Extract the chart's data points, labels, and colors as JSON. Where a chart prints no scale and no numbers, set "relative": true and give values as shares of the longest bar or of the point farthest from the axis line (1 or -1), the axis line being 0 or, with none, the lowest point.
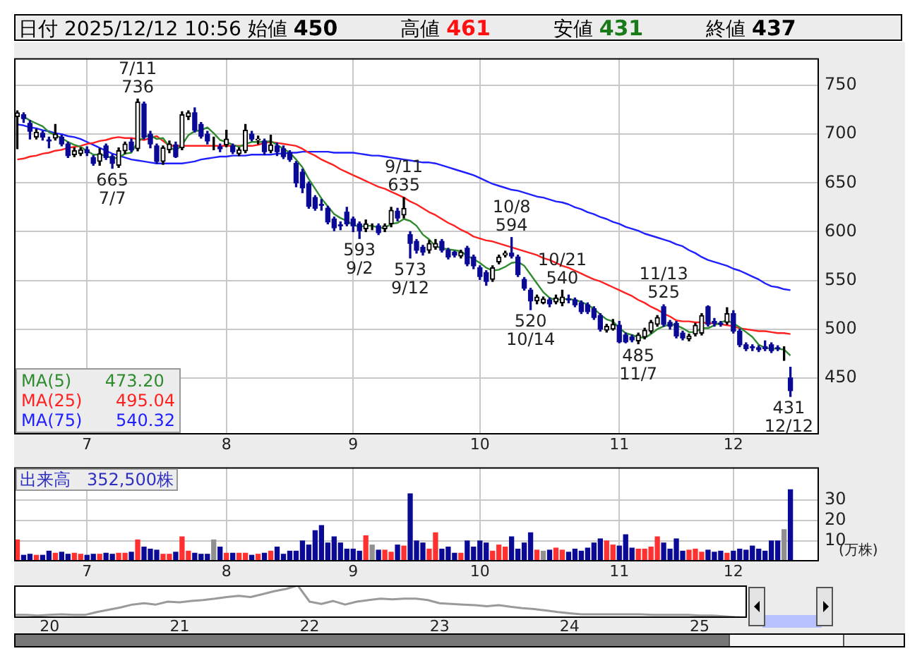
{
  "chart_data": [
    {
      "type": "candlestick",
      "title": "日付 2025/12/12 10:56 始値 450 高値 461 安値 431 終値 437",
      "categories": [
        null,
        null,
        null,
        null,
        null,
        null,
        null,
        null,
        null,
        null,
        null,
        "7",
        null,
        null,
        null,
        null,
        null,
        null,
        null,
        null,
        null,
        null,
        null,
        null,
        null,
        null,
        null,
        null,
        null,
        null,
        null,
        null,
        null,
        "8",
        null,
        null,
        null,
        null,
        null,
        null,
        null,
        null,
        null,
        null,
        null,
        null,
        null,
        null,
        null,
        null,
        null,
        null,
        null,
        "9",
        null,
        null,
        null,
        null,
        null,
        null,
        null,
        null,
        null,
        null,
        null,
        null,
        null,
        null,
        null,
        null,
        null,
        null,
        null,
        "10",
        null,
        null,
        null,
        null,
        null,
        null,
        null,
        null,
        null,
        null,
        null,
        null,
        null,
        null,
        null,
        null,
        null,
        null,
        null,
        null,
        null,
        "11",
        null,
        null,
        null,
        null,
        null,
        null,
        null,
        null,
        null,
        null,
        null,
        null,
        null,
        null,
        null,
        null,
        null,
        "12",
        null,
        null,
        null,
        null,
        null,
        null,
        null,
        null,
        null,
        null,
        null,
        null,
        null
      ],
      "ohlc": [
        [
          718,
          724,
          685,
          722
        ],
        [
          720,
          722,
          712,
          716
        ],
        [
          711,
          714,
          695,
          703
        ],
        [
          697,
          705,
          695,
          702
        ],
        [
          701,
          703,
          694,
          697
        ],
        [
          694,
          697,
          686,
          693
        ],
        [
          696,
          710,
          694,
          700
        ],
        [
          697,
          699,
          688,
          690
        ],
        [
          690,
          692,
          676,
          678
        ],
        [
          679,
          686,
          677,
          683
        ],
        [
          680,
          686,
          678,
          684
        ],
        [
          684,
          687,
          678,
          681
        ],
        [
          676,
          678,
          668,
          670
        ],
        [
          672,
          685,
          668,
          680
        ],
        [
          688,
          690,
          674,
          676
        ],
        [
          677,
          679,
          665,
          670
        ],
        [
          668,
          686,
          666,
          683
        ],
        [
          683,
          692,
          680,
          690
        ],
        [
          692,
          695,
          682,
          684
        ],
        [
          685,
          736,
          683,
          733
        ],
        [
          731,
          733,
          695,
          697
        ],
        [
          700,
          703,
          686,
          690
        ],
        [
          688,
          690,
          670,
          672
        ],
        [
          672,
          688,
          669,
          686
        ],
        [
          684,
          693,
          681,
          690
        ],
        [
          689,
          692,
          676,
          677
        ],
        [
          686,
          723,
          684,
          720
        ],
        [
          718,
          724,
          715,
          722
        ],
        [
          722,
          727,
          702,
          704
        ],
        [
          710,
          712,
          696,
          698
        ],
        [
          700,
          703,
          690,
          693
        ],
        [
          688,
          697,
          684,
          688
        ],
        [
          687,
          690,
          682,
          685
        ],
        [
          689,
          704,
          687,
          695
        ],
        [
          688,
          690,
          680,
          682
        ],
        [
          680,
          686,
          678,
          684
        ],
        [
          683,
          710,
          681,
          704
        ],
        [
          700,
          703,
          693,
          695
        ],
        [
          694,
          698,
          690,
          695
        ],
        [
          693,
          695,
          679,
          682
        ],
        [
          683,
          699,
          681,
          689
        ],
        [
          688,
          691,
          678,
          682
        ],
        [
          685,
          688,
          675,
          677
        ],
        [
          681,
          683,
          672,
          674
        ],
        [
          670,
          672,
          646,
          650
        ],
        [
          661,
          664,
          640,
          645
        ],
        [
          649,
          651,
          624,
          626
        ],
        [
          635,
          637,
          622,
          624
        ],
        [
          628,
          633,
          622,
          627
        ],
        [
          624,
          626,
          608,
          610
        ],
        [
          613,
          615,
          601,
          604
        ],
        [
          607,
          610,
          602,
          606
        ],
        [
          620,
          625,
          606,
          608
        ],
        [
          613,
          615,
          600,
          606
        ],
        [
          608,
          610,
          593,
          601
        ],
        [
          603,
          612,
          600,
          608
        ],
        [
          606,
          608,
          602,
          606
        ],
        [
          606,
          608,
          597,
          599
        ],
        [
          603,
          608,
          600,
          606
        ],
        [
          608,
          625,
          605,
          622
        ],
        [
          621,
          624,
          611,
          614
        ],
        [
          617,
          635,
          614,
          624
        ],
        [
          597,
          600,
          573,
          588
        ],
        [
          590,
          592,
          578,
          581
        ],
        [
          584,
          586,
          576,
          579
        ],
        [
          581,
          591,
          578,
          588
        ],
        [
          584,
          592,
          582,
          588
        ],
        [
          590,
          592,
          579,
          581
        ],
        [
          581,
          583,
          572,
          574
        ],
        [
          579,
          580,
          574,
          576
        ],
        [
          575,
          581,
          573,
          579
        ],
        [
          583,
          585,
          565,
          567
        ],
        [
          574,
          576,
          562,
          565
        ],
        [
          563,
          565,
          551,
          554
        ],
        [
          558,
          560,
          545,
          549
        ],
        [
          551,
          565,
          549,
          563
        ],
        [
          569,
          576,
          567,
          574
        ],
        [
          576,
          580,
          574,
          578
        ],
        [
          578,
          594,
          573,
          575
        ],
        [
          574,
          576,
          554,
          556
        ],
        [
          551,
          553,
          540,
          542
        ],
        [
          540,
          542,
          520,
          529
        ],
        [
          529,
          535,
          526,
          533
        ],
        [
          527,
          533,
          526,
          531
        ],
        [
          530,
          532,
          523,
          526
        ],
        [
          528,
          535,
          526,
          532
        ],
        [
          527,
          540,
          524,
          533
        ],
        [
          531,
          535,
          527,
          530
        ],
        [
          530,
          532,
          523,
          525
        ],
        [
          527,
          529,
          516,
          518
        ],
        [
          525,
          527,
          516,
          518
        ],
        [
          521,
          523,
          510,
          512
        ],
        [
          514,
          516,
          498,
          500
        ],
        [
          499,
          505,
          497,
          503
        ],
        [
          500,
          510,
          499,
          505
        ],
        [
          504,
          508,
          486,
          487
        ],
        [
          494,
          496,
          486,
          487
        ],
        [
          492,
          494,
          487,
          489
        ],
        [
          488,
          496,
          485,
          494
        ],
        [
          492,
          501,
          490,
          499
        ],
        [
          498,
          509,
          496,
          507
        ],
        [
          505,
          514,
          503,
          512
        ],
        [
          523,
          525,
          503,
          505
        ],
        [
          507,
          509,
          500,
          503
        ],
        [
          506,
          508,
          491,
          493
        ],
        [
          496,
          498,
          489,
          491
        ],
        [
          490,
          495,
          488,
          493
        ],
        [
          495,
          506,
          493,
          504
        ],
        [
          496,
          516,
          494,
          514
        ],
        [
          523,
          524,
          503,
          505
        ],
        [
          508,
          511,
          503,
          506
        ],
        [
          506,
          508,
          503,
          505
        ],
        [
          507,
          522,
          505,
          516
        ],
        [
          516,
          519,
          496,
          498
        ],
        [
          498,
          500,
          482,
          484
        ],
        [
          484,
          486,
          478,
          480
        ],
        [
          482,
          484,
          478,
          481
        ],
        [
          481,
          483,
          477,
          479
        ],
        [
          482,
          488,
          478,
          480
        ],
        [
          484,
          486,
          476,
          478
        ],
        [
          481,
          483,
          478,
          480
        ],
        [
          480,
          482,
          468,
          480
        ],
        [
          450,
          461,
          431,
          437
        ],
        null,
        null,
        null,
        null
      ],
      "series": [
        {
          "name": "MA(5) 473.20",
          "type": "line",
          "color": "#2e8b2e",
          "values": [
            null,
            718,
            714,
            711,
            708,
            702,
            699,
            696,
            692,
            689,
            687,
            683,
            679,
            679,
            678,
            675,
            676,
            680,
            681,
            692,
            697,
            699,
            695,
            696,
            687,
            683,
            689,
            699,
            703,
            704,
            707,
            701,
            694,
            692,
            689,
            687,
            690,
            692,
            692,
            692,
            693,
            689,
            685,
            681,
            674,
            666,
            654,
            644,
            634,
            626,
            618,
            614,
            611,
            607,
            605,
            606,
            606,
            604,
            604,
            608,
            609,
            613,
            611,
            606,
            597,
            592,
            585,
            583,
            582,
            581,
            580,
            575,
            572,
            568,
            563,
            560,
            561,
            564,
            568,
            569,
            565,
            556,
            547,
            538,
            532,
            530,
            531,
            531,
            530,
            528,
            525,
            521,
            515,
            510,
            508,
            501,
            496,
            494,
            492,
            491,
            495,
            500,
            503,
            505,
            504,
            501,
            497,
            497,
            501,
            501,
            504,
            507,
            509,
            506,
            502,
            497,
            492,
            484,
            481,
            480,
            480,
            479,
            473,
            null,
            null,
            null,
            null
          ]
        },
        {
          "name": "MA(25) 495.04",
          "type": "line",
          "color": "#ff2020",
          "values": [
            674,
            675,
            677,
            678,
            680,
            681,
            683,
            684,
            686,
            687,
            688,
            690,
            691,
            693,
            694,
            696,
            697,
            696,
            696,
            695,
            694,
            696,
            698,
            693,
            688,
            688,
            688,
            688,
            688,
            688,
            688,
            688,
            688,
            688,
            688,
            688,
            688,
            688,
            689,
            691,
            692,
            691,
            690,
            689,
            688,
            685,
            681,
            678,
            674,
            671,
            668,
            664,
            661,
            658,
            655,
            652,
            649,
            646,
            644,
            641,
            638,
            635,
            631,
            628,
            624,
            620,
            617,
            613,
            609,
            606,
            602,
            599,
            595,
            593,
            591,
            590,
            588,
            586,
            584,
            582,
            580,
            578,
            576,
            573,
            571,
            568,
            565,
            563,
            560,
            557,
            554,
            551,
            549,
            546,
            543,
            540,
            537,
            534,
            530,
            527,
            523,
            520,
            516,
            513,
            509,
            508,
            508,
            507,
            507,
            506,
            506,
            505,
            504,
            503,
            501,
            500,
            499,
            498,
            498,
            497,
            496,
            496,
            495,
            null,
            null,
            null,
            null
          ]
        },
        {
          "name": "MA(75) 540.32",
          "type": "line",
          "color": "#2020ff",
          "values": [
            710,
            709,
            707,
            706,
            704,
            703,
            701,
            700,
            698,
            697,
            695,
            692,
            689,
            686,
            683,
            680,
            678,
            676,
            674,
            673,
            672,
            671,
            670,
            670,
            670,
            670,
            670,
            671,
            672,
            674,
            675,
            676,
            677,
            677,
            678,
            678,
            678,
            679,
            679,
            679,
            679,
            680,
            680,
            681,
            681,
            682,
            682,
            682,
            682,
            682,
            681,
            681,
            681,
            681,
            680,
            679,
            678,
            678,
            677,
            676,
            675,
            674,
            673,
            672,
            671,
            671,
            670,
            668,
            666,
            664,
            662,
            660,
            658,
            655,
            652,
            649,
            647,
            645,
            643,
            642,
            640,
            638,
            636,
            635,
            633,
            631,
            630,
            628,
            625,
            623,
            620,
            618,
            615,
            613,
            610,
            608,
            605,
            603,
            601,
            598,
            596,
            594,
            592,
            590,
            587,
            585,
            581,
            578,
            574,
            571,
            569,
            567,
            565,
            562,
            560,
            557,
            554,
            551,
            547,
            544,
            543,
            541,
            540,
            null,
            null,
            null,
            null
          ]
        }
      ],
      "annotations": [
        {
          "text": "7/11\n736",
          "y": 736
        },
        {
          "text": "665\n7/7",
          "y": 665
        },
        {
          "text": "9/11\n635",
          "y": 635
        },
        {
          "text": "593\n9/2",
          "y": 593
        },
        {
          "text": "573\n9/12",
          "y": 573
        },
        {
          "text": "10/8\n594",
          "y": 594
        },
        {
          "text": "520\n10/14",
          "y": 520
        },
        {
          "text": "10/21\n540",
          "y": 540
        },
        {
          "text": "11/13\n525",
          "y": 525
        },
        {
          "text": "485\n11/7",
          "y": 485
        },
        {
          "text": "431\n12/12",
          "y": 431
        }
      ],
      "ylim": [
        392,
        778
      ],
      "yticks": [
        450,
        500,
        550,
        600,
        650,
        700,
        750
      ],
      "grid": true,
      "legend": "bottom left"
    },
    {
      "type": "bar",
      "title": "出来高 352,500株",
      "ylabel": "(万株)",
      "categories": [
        null,
        null,
        null,
        null,
        null,
        null,
        null,
        null,
        null,
        null,
        null,
        "7",
        null,
        null,
        null,
        null,
        null,
        null,
        null,
        null,
        null,
        null,
        null,
        null,
        null,
        null,
        null,
        null,
        null,
        null,
        null,
        null,
        null,
        "8",
        null,
        null,
        null,
        null,
        null,
        null,
        null,
        null,
        null,
        null,
        null,
        null,
        null,
        null,
        null,
        null,
        null,
        null,
        null,
        "9",
        null,
        null,
        null,
        null,
        null,
        null,
        null,
        null,
        null,
        null,
        null,
        null,
        null,
        null,
        null,
        null,
        null,
        null,
        null,
        "10",
        null,
        null,
        null,
        null,
        null,
        null,
        null,
        null,
        null,
        null,
        null,
        null,
        null,
        null,
        null,
        null,
        null,
        null,
        null,
        null,
        null,
        "11",
        null,
        null,
        null,
        null,
        null,
        null,
        null,
        null,
        null,
        null,
        null,
        null,
        null,
        null,
        null,
        null,
        null,
        "12",
        null,
        null,
        null,
        null,
        null,
        null,
        null,
        null,
        null,
        null,
        null,
        null,
        null
      ],
      "values": [
        10.5,
        3,
        3.5,
        3,
        3,
        5,
        4,
        4.5,
        3.5,
        4,
        3.5,
        3,
        3.5,
        3.5,
        4,
        3.5,
        4,
        4,
        4.5,
        10.5,
        7,
        6,
        5.5,
        3.5,
        3.5,
        4.5,
        12,
        5,
        4,
        3.5,
        3.5,
        10.5,
        7,
        4,
        4,
        4,
        4,
        3,
        3.5,
        4,
        5,
        7,
        3.5,
        5,
        5,
        10,
        8,
        15,
        17.5,
        9,
        12,
        9,
        6,
        6,
        5,
        12.5,
        8,
        5.5,
        5.5,
        4.5,
        8,
        7.5,
        33,
        10,
        9,
        6,
        14,
        6,
        7,
        4,
        4,
        10,
        7,
        10,
        9,
        5,
        8,
        7,
        12,
        6,
        9,
        14,
        5.5,
        5,
        5.5,
        6.5,
        5.5,
        4.5,
        6,
        5,
        6.5,
        9,
        11,
        10,
        8,
        7.5,
        13,
        6.5,
        6,
        6,
        7,
        12,
        9,
        6,
        11,
        5,
        5.5,
        6,
        4.5,
        5.5,
        4.5,
        5,
        4,
        5,
        6,
        5.5,
        7.5,
        6,
        5,
        10,
        10,
        15.5,
        35,
        null,
        null,
        null,
        null
      ],
      "colors": [
        "#ff3030",
        "#0a0a96",
        "#0a0a96",
        "#ff3030",
        "#0a0a96",
        "#0a0a96",
        "#ff3030",
        "#0a0a96",
        "#0a0a96",
        "#ff3030",
        "#ff3030",
        "#0a0a96",
        "#0a0a96",
        "#ff3030",
        "#0a0a96",
        "#0a0a96",
        "#ff3030",
        "#ff3030",
        "#0a0a96",
        "#ff3030",
        "#0a0a96",
        "#0a0a96",
        "#0a0a96",
        "#ff3030",
        "#ff3030",
        "#0a0a96",
        "#ff3030",
        "#ff3030",
        "#0a0a96",
        "#0a0a96",
        "#0a0a96",
        "#909090",
        "#0a0a96",
        "#ff3030",
        "#0a0a96",
        "#ff3030",
        "#ff3030",
        "#0a0a96",
        "#ff3030",
        "#0a0a96",
        "#ff3030",
        "#0a0a96",
        "#0a0a96",
        "#0a0a96",
        "#0a0a96",
        "#0a0a96",
        "#0a0a96",
        "#0a0a96",
        "#0a0a96",
        "#0a0a96",
        "#0a0a96",
        "#0a0a96",
        "#0a0a96",
        "#0a0a96",
        "#0a0a96",
        "#ff3030",
        "#909090",
        "#0a0a96",
        "#ff3030",
        "#ff3030",
        "#0a0a96",
        "#ff3030",
        "#0a0a96",
        "#0a0a96",
        "#0a0a96",
        "#ff3030",
        "#ff3030",
        "#0a0a96",
        "#0a0a96",
        "#0a0a96",
        "#ff3030",
        "#0a0a96",
        "#0a0a96",
        "#0a0a96",
        "#0a0a96",
        "#ff3030",
        "#ff3030",
        "#ff3030",
        "#0a0a96",
        "#0a0a96",
        "#0a0a96",
        "#0a0a96",
        "#ff3030",
        "#909090",
        "#0a0a96",
        "#ff3030",
        "#ff3030",
        "#0a0a96",
        "#0a0a96",
        "#0a0a96",
        "#0a0a96",
        "#0a0a96",
        "#0a0a96",
        "#ff3030",
        "#ff3030",
        "#0a0a96",
        "#0a0a96",
        "#0a0a96",
        "#ff3030",
        "#ff3030",
        "#ff3030",
        "#ff3030",
        "#0a0a96",
        "#0a0a96",
        "#0a0a96",
        "#0a0a96",
        "#ff3030",
        "#ff3030",
        "#ff3030",
        "#0a0a96",
        "#0a0a96",
        "#0a0a96",
        "#ff3030",
        "#0a0a96",
        "#0a0a96",
        "#0a0a96",
        "#0a0a96",
        "#0a0a96",
        "#0a0a96",
        "#0a0a96",
        "#0a0a96",
        "#909090",
        "#0a0a96",
        "#0a0a96",
        "#0a0a96",
        "#0a0a96",
        "#0a0a96"
      ],
      "ylim": [
        0,
        46
      ],
      "yticks": [
        10,
        20,
        30
      ],
      "grid": true
    },
    {
      "type": "line",
      "relative": true,
      "color": "#9a9a9a",
      "categories": [
        null,
        null,
        null,
        "20",
        null,
        null,
        null,
        null,
        null,
        null,
        null,
        null,
        null,
        null,
        "21",
        null,
        null,
        null,
        null,
        null,
        null,
        null,
        null,
        null,
        null,
        "22",
        null,
        null,
        null,
        null,
        null,
        null,
        null,
        null,
        null,
        null,
        "23",
        null,
        null,
        null,
        null,
        null,
        null,
        null,
        null,
        null,
        null,
        "24",
        null,
        null,
        null,
        null,
        null,
        null,
        null,
        null,
        null,
        null,
        "25",
        null,
        null,
        null,
        null
      ],
      "values": [
        0.09,
        0.09,
        0.07,
        0.09,
        0.11,
        0.09,
        0.09,
        0.18,
        0.25,
        0.32,
        0.41,
        0.45,
        0.41,
        0.5,
        0.48,
        0.52,
        0.55,
        0.59,
        0.64,
        0.68,
        0.64,
        0.73,
        0.82,
        0.89,
        1,
        0.5,
        0.43,
        0.52,
        0.41,
        0.5,
        0.55,
        0.59,
        0.57,
        0.59,
        0.59,
        0.55,
        0.45,
        0.43,
        0.41,
        0.39,
        0.36,
        0.39,
        0.34,
        0.3,
        0.27,
        0.23,
        0.18,
        0.14,
        0.11,
        0.11,
        0.11,
        0.11,
        0.11,
        0.11,
        0.09,
        0.09,
        0.09,
        0.09,
        0.07,
        0.07,
        0.05,
        0.02,
        0
      ]
    }
  ]
}
